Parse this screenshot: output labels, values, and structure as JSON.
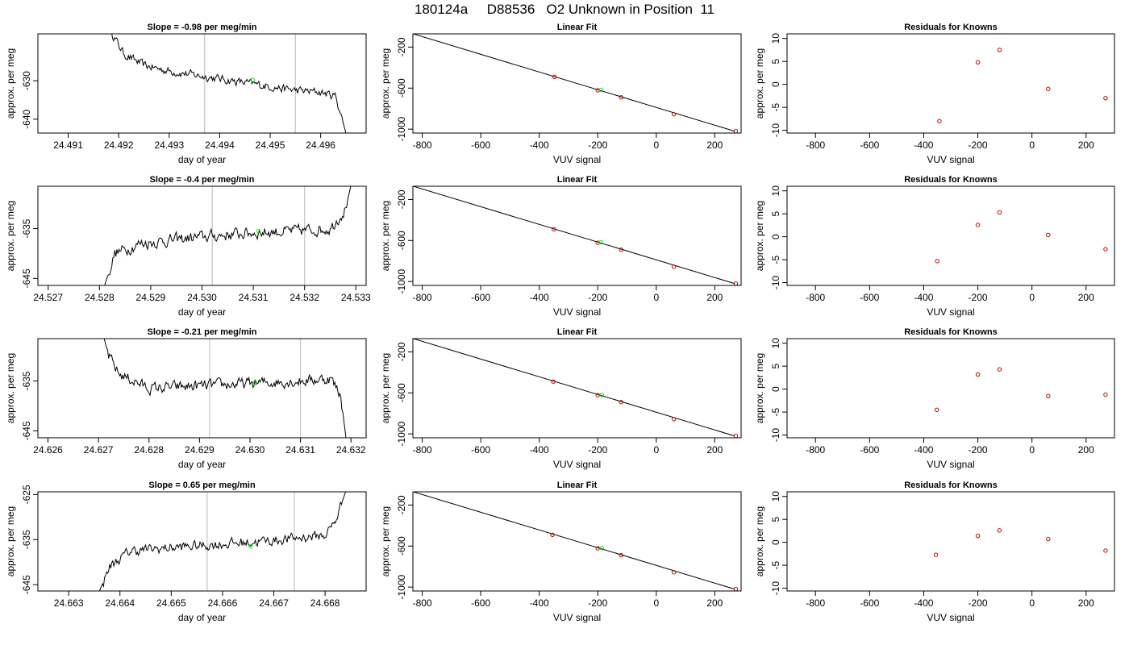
{
  "page_title": "180124a     D88536   O2 Unknown in Position  11",
  "colors": {
    "trace": "#000000",
    "marker_green": "#00ee00",
    "marker_red": "#cc0000",
    "vline": "#c8c8c8"
  },
  "chart_data": [
    {
      "type": "line",
      "panel": "timeseries",
      "title": "Slope =  -0.98  per meg/min",
      "xlabel": "day of year",
      "ylabel": "approx. per meg",
      "xlim": [
        24.4904,
        24.4969
      ],
      "ylim": [
        -643.6,
        -617.8
      ],
      "xticks": [
        "24.491",
        "24.492",
        "24.493",
        "24.494",
        "24.495",
        "24.496"
      ],
      "yticks": [
        "-630",
        "-640"
      ],
      "vlines": [
        24.4937,
        24.4955
      ],
      "green_point": [
        24.49465,
        -629.8
      ],
      "x_start": 24.4918,
      "x_end": 24.4965,
      "trend": [
        [
          24.4918,
          -616
        ],
        [
          24.4921,
          -623
        ],
        [
          24.4925,
          -626
        ],
        [
          24.493,
          -627.5
        ],
        [
          24.4935,
          -628.5
        ],
        [
          24.494,
          -629.5
        ],
        [
          24.4945,
          -630.5
        ],
        [
          24.495,
          -631.5
        ],
        [
          24.4955,
          -632.5
        ],
        [
          24.496,
          -633.0
        ],
        [
          24.4963,
          -634.0
        ],
        [
          24.4965,
          -643.6
        ]
      ],
      "noise": 1.7
    },
    {
      "type": "scatter",
      "panel": "fit",
      "title": "Linear Fit",
      "xlabel": "VUV signal",
      "ylabel": "approx. per meg",
      "xlim": [
        -832,
        290
      ],
      "ylim": [
        -1038,
        -71
      ],
      "xticks": [
        -800,
        -600,
        -400,
        -200,
        0,
        200
      ],
      "yticks": [
        -200,
        -600,
        -1000
      ],
      "fit_line": [
        [
          -832,
          -70
        ],
        [
          268,
          -1020
        ]
      ],
      "known_points": [
        [
          -348,
          -490
        ],
        [
          -200,
          -622
        ],
        [
          -120,
          -690
        ],
        [
          60,
          -855
        ],
        [
          272,
          -1020
        ]
      ],
      "green_point": [
        -189,
        -617
      ]
    },
    {
      "type": "scatter",
      "panel": "residuals",
      "title": "Residuals for Knowns",
      "xlabel": "VUV signal",
      "ylabel": "approx. per meg",
      "xlim": [
        -905,
        305
      ],
      "ylim": [
        -10.6,
        11.0
      ],
      "xticks": [
        -800,
        -600,
        -400,
        -200,
        0,
        200
      ],
      "yticks": [
        10,
        5,
        0,
        -5,
        -10
      ],
      "points": [
        [
          -342,
          -8.0
        ],
        [
          -200,
          4.8
        ],
        [
          -120,
          7.5
        ],
        [
          60,
          -1.0
        ],
        [
          272,
          -3.0
        ]
      ]
    },
    {
      "type": "line",
      "panel": "timeseries",
      "title": "Slope =  -0.4  per meg/min",
      "xlabel": "day of year",
      "ylabel": "approx. per meg",
      "xlim": [
        24.5268,
        24.5332
      ],
      "ylim": [
        -646.4,
        -626.5
      ],
      "xticks": [
        "24.527",
        "24.528",
        "24.529",
        "24.530",
        "24.531",
        "24.532",
        "24.533"
      ],
      "yticks": [
        "-635",
        "-645"
      ],
      "vlines": [
        24.5302,
        24.532
      ],
      "green_point": [
        24.5311,
        -635.5
      ],
      "x_start": 24.5281,
      "x_end": 24.5329,
      "trend": [
        [
          24.5281,
          -646.4
        ],
        [
          24.5283,
          -640.0
        ],
        [
          24.5288,
          -638.0
        ],
        [
          24.5295,
          -637.2
        ],
        [
          24.5302,
          -636.5
        ],
        [
          24.531,
          -635.8
        ],
        [
          24.5318,
          -635.5
        ],
        [
          24.5325,
          -635.0
        ],
        [
          24.5328,
          -631.0
        ],
        [
          24.5329,
          -626.5
        ]
      ],
      "noise": 1.9
    },
    {
      "type": "scatter",
      "panel": "fit",
      "title": "Linear Fit",
      "xlabel": "VUV signal",
      "ylabel": "approx. per meg",
      "xlim": [
        -832,
        290
      ],
      "ylim": [
        -1038,
        -71
      ],
      "xticks": [
        -800,
        -600,
        -400,
        -200,
        0,
        200
      ],
      "yticks": [
        -200,
        -600,
        -1000
      ],
      "fit_line": [
        [
          -832,
          -70
        ],
        [
          268,
          -1020
        ]
      ],
      "known_points": [
        [
          -350,
          -490
        ],
        [
          -200,
          -622
        ],
        [
          -120,
          -690
        ],
        [
          60,
          -855
        ],
        [
          272,
          -1020
        ]
      ],
      "green_point": [
        -189,
        -617
      ]
    },
    {
      "type": "scatter",
      "panel": "residuals",
      "title": "Residuals for Knowns",
      "xlabel": "VUV signal",
      "ylabel": "approx. per meg",
      "xlim": [
        -905,
        305
      ],
      "ylim": [
        -10.6,
        11.0
      ],
      "xticks": [
        -800,
        -600,
        -400,
        -200,
        0,
        200
      ],
      "yticks": [
        10,
        5,
        0,
        -5,
        -10
      ],
      "points": [
        [
          -350,
          -5.3
        ],
        [
          -200,
          2.6
        ],
        [
          -120,
          5.3
        ],
        [
          60,
          0.4
        ],
        [
          272,
          -2.7
        ]
      ]
    },
    {
      "type": "line",
      "panel": "timeseries",
      "title": "Slope =  -0.21  per meg/min",
      "xlabel": "day of year",
      "ylabel": "approx. per meg",
      "xlim": [
        24.6258,
        24.6323
      ],
      "ylim": [
        -646.4,
        -626.5
      ],
      "xticks": [
        "24.626",
        "24.627",
        "24.628",
        "24.629",
        "24.630",
        "24.631",
        "24.632"
      ],
      "yticks": [
        "-635",
        "-645"
      ],
      "vlines": [
        24.6292,
        24.631
      ],
      "green_point": [
        24.6301,
        -635.3
      ],
      "x_start": 24.6271,
      "x_end": 24.6319,
      "trend": [
        [
          24.6271,
          -626.0
        ],
        [
          24.6272,
          -630.0
        ],
        [
          24.6274,
          -633.5
        ],
        [
          24.628,
          -636.5
        ],
        [
          24.629,
          -636.0
        ],
        [
          24.63,
          -635.5
        ],
        [
          24.631,
          -635.0
        ],
        [
          24.6316,
          -634.5
        ],
        [
          24.6318,
          -638.0
        ],
        [
          24.6319,
          -646.4
        ]
      ],
      "noise": 1.8
    },
    {
      "type": "scatter",
      "panel": "fit",
      "title": "Linear Fit",
      "xlabel": "VUV signal",
      "ylabel": "approx. per meg",
      "xlim": [
        -832,
        290
      ],
      "ylim": [
        -1038,
        -71
      ],
      "xticks": [
        -800,
        -600,
        -400,
        -200,
        0,
        200
      ],
      "yticks": [
        -200,
        -600,
        -1000
      ],
      "fit_line": [
        [
          -832,
          -70
        ],
        [
          268,
          -1020
        ]
      ],
      "known_points": [
        [
          -352,
          -490
        ],
        [
          -200,
          -622
        ],
        [
          -120,
          -690
        ],
        [
          60,
          -855
        ],
        [
          272,
          -1020
        ]
      ],
      "green_point": [
        -186,
        -620
      ]
    },
    {
      "type": "scatter",
      "panel": "residuals",
      "title": "Residuals for Knowns",
      "xlabel": "VUV signal",
      "ylabel": "approx. per meg",
      "xlim": [
        -905,
        305
      ],
      "ylim": [
        -10.6,
        11.0
      ],
      "xticks": [
        -800,
        -600,
        -400,
        -200,
        0,
        200
      ],
      "yticks": [
        10,
        5,
        0,
        -5,
        -10
      ],
      "points": [
        [
          -352,
          -4.5
        ],
        [
          -200,
          3.2
        ],
        [
          -120,
          4.3
        ],
        [
          60,
          -1.5
        ],
        [
          272,
          -1.2
        ]
      ]
    },
    {
      "type": "line",
      "panel": "timeseries",
      "title": "Slope =  0.65  per meg/min",
      "xlabel": "day of year",
      "ylabel": "approx. per meg",
      "xlim": [
        24.6624,
        24.6688
      ],
      "ylim": [
        -646.4,
        -624.4
      ],
      "xticks": [
        "24.663",
        "24.664",
        "24.665",
        "24.666",
        "24.667",
        "24.668"
      ],
      "yticks": [
        "-625",
        "-635",
        "-645"
      ],
      "vlines": [
        24.6657,
        24.6674
      ],
      "green_point": [
        24.66655,
        -636.5
      ],
      "x_start": 24.6636,
      "x_end": 24.6684,
      "trend": [
        [
          24.6636,
          -646.4
        ],
        [
          24.6638,
          -641.0
        ],
        [
          24.6642,
          -637.5
        ],
        [
          24.665,
          -636.8
        ],
        [
          24.666,
          -636.0
        ],
        [
          24.667,
          -635.2
        ],
        [
          24.668,
          -634.0
        ],
        [
          24.6682,
          -631.0
        ],
        [
          24.6684,
          -624.4
        ]
      ],
      "noise": 1.8
    },
    {
      "type": "scatter",
      "panel": "fit",
      "title": "Linear Fit",
      "xlabel": "VUV signal",
      "ylabel": "approx. per meg",
      "xlim": [
        -832,
        290
      ],
      "ylim": [
        -1038,
        -71
      ],
      "xticks": [
        -800,
        -600,
        -400,
        -200,
        0,
        200
      ],
      "yticks": [
        -200,
        -600,
        -1000
      ],
      "fit_line": [
        [
          -832,
          -70
        ],
        [
          268,
          -1020
        ]
      ],
      "known_points": [
        [
          -355,
          -490
        ],
        [
          -200,
          -622
        ],
        [
          -120,
          -690
        ],
        [
          60,
          -855
        ],
        [
          272,
          -1020
        ]
      ],
      "green_point": [
        -186,
        -620
      ]
    },
    {
      "type": "scatter",
      "panel": "residuals",
      "title": "Residuals for Knowns",
      "xlabel": "VUV signal",
      "ylabel": "approx. per meg",
      "xlim": [
        -905,
        305
      ],
      "ylim": [
        -10.6,
        11.0
      ],
      "xticks": [
        -800,
        -600,
        -400,
        -200,
        0,
        200
      ],
      "yticks": [
        10,
        5,
        0,
        -5,
        -10
      ],
      "points": [
        [
          -355,
          -2.7
        ],
        [
          -200,
          1.4
        ],
        [
          -120,
          2.6
        ],
        [
          60,
          0.7
        ],
        [
          272,
          -1.8
        ]
      ]
    }
  ]
}
